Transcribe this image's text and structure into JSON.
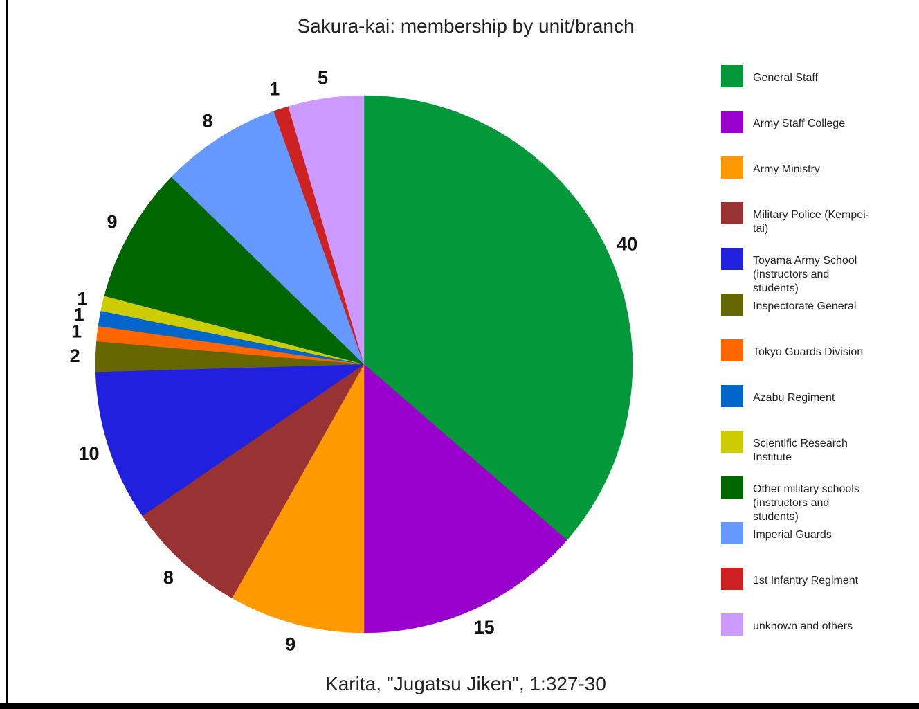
{
  "chart_data": {
    "type": "pie",
    "title": "Sakura-kai: membership by unit/branch",
    "subtitle": "Karita, \"Jugatsu Jiken\", 1:327-30",
    "legend_position": "right",
    "slices": [
      {
        "label": "General Staff",
        "legend_lines": [
          "General Staff"
        ],
        "value": 40,
        "color": "#03993a"
      },
      {
        "label": "Army Staff College",
        "legend_lines": [
          "Army Staff College"
        ],
        "value": 15,
        "color": "#9900cc"
      },
      {
        "label": "Army Ministry",
        "legend_lines": [
          "Army Ministry"
        ],
        "value": 9,
        "color": "#ff9900"
      },
      {
        "label": "Military Police (Kempei-tai)",
        "legend_lines": [
          "Military Police (Kempei-",
          "tai)"
        ],
        "value": 8,
        "color": "#993333"
      },
      {
        "label": "Toyama Army School (instructors and students)",
        "legend_lines": [
          "Toyama Army School",
          "(instructors and",
          "students)"
        ],
        "value": 10,
        "color": "#2121dd"
      },
      {
        "label": "Inspectorate General",
        "legend_lines": [
          "Inspectorate General"
        ],
        "value": 2,
        "color": "#666600"
      },
      {
        "label": "Tokyo Guards Division",
        "legend_lines": [
          "Tokyo Guards Division"
        ],
        "value": 1,
        "color": "#ff6600"
      },
      {
        "label": "Azabu Regiment",
        "legend_lines": [
          "Azabu Regiment"
        ],
        "value": 1,
        "color": "#0066cc"
      },
      {
        "label": "Scientific Research Institute",
        "legend_lines": [
          "Scientific Research",
          "Institute"
        ],
        "value": 1,
        "color": "#cccc00"
      },
      {
        "label": "Other military schools (instructors and students)",
        "legend_lines": [
          "Other military schools",
          "(instructors and",
          "students)"
        ],
        "value": 9,
        "color": "#006600"
      },
      {
        "label": "Imperial Guards",
        "legend_lines": [
          "Imperial Guards"
        ],
        "value": 8,
        "color": "#6699ff"
      },
      {
        "label": "1st Infantry Regiment",
        "legend_lines": [
          "1st Infantry Regiment"
        ],
        "value": 1,
        "color": "#cc2222"
      },
      {
        "label": "unknown and others",
        "legend_lines": [
          "unknown and others"
        ],
        "value": 5,
        "color": "#cc99ff"
      }
    ]
  }
}
